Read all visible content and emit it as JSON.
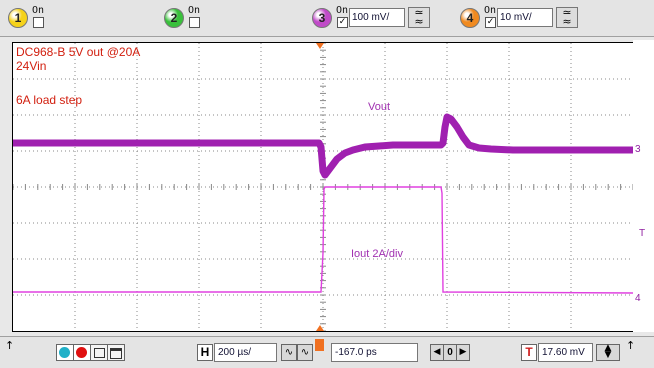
{
  "channels": [
    {
      "number": "1",
      "on_label": "On",
      "checked": "",
      "color": "#f5d21a"
    },
    {
      "number": "2",
      "on_label": "On",
      "checked": "",
      "color": "#39c03b"
    },
    {
      "number": "3",
      "on_label": "On",
      "checked": "✓",
      "scale": "100 mV/",
      "color": "#c04ac8"
    },
    {
      "number": "4",
      "on_label": "On",
      "checked": "✓",
      "scale": "10 mV/",
      "color": "#f08a20"
    }
  ],
  "annotations": {
    "line1": "DC968-B 5V out @20A",
    "line2": "24Vin",
    "line3": "6A load step"
  },
  "traces": {
    "vout_label": "Vout",
    "iout_label": "Iout 2A/div",
    "ch3_marker": "3",
    "ch4_marker": "4",
    "trigger_marker": "T",
    "colors": {
      "vout": "#a020b0",
      "iout": "#e040e0",
      "grid": "#888888",
      "trigger": "#f07020"
    }
  },
  "bottom": {
    "timebase_prefix": "H",
    "timebase": "200 µs/",
    "delay": "-167.0 ps",
    "trigger_prefix": "T",
    "trigger_level": "17.60 mV",
    "arrow_up": "↑",
    "nav_left": "◀",
    "nav_center": "0",
    "nav_right": "▶"
  }
}
